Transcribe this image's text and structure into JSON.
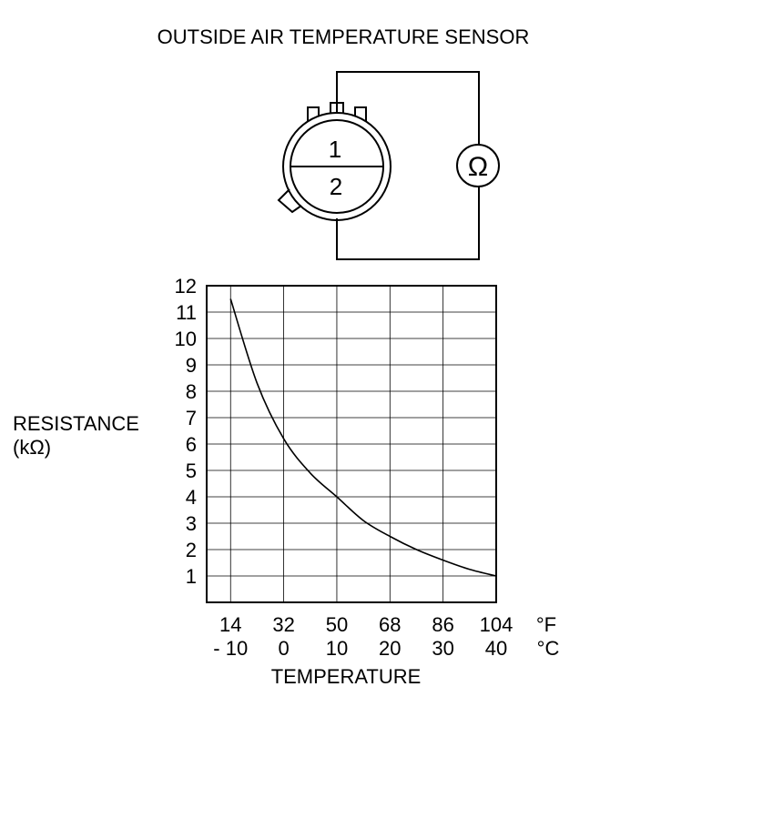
{
  "title": "OUTSIDE AIR TEMPERATURE SENSOR",
  "sensor": {
    "pin_top": "1",
    "pin_bottom": "2",
    "meter_symbol": "Ω"
  },
  "chart_data": {
    "type": "line",
    "title": "OUTSIDE AIR TEMPERATURE SENSOR",
    "ylabel_line1": "RESISTANCE",
    "ylabel_line2": "(kΩ)",
    "xlabel": "TEMPERATURE",
    "x_unit_f": "°F",
    "x_unit_c": "°C",
    "x_ticks_f": [
      "14",
      "32",
      "50",
      "68",
      "86",
      "104"
    ],
    "x_ticks_c": [
      "- 10",
      "0",
      "10",
      "20",
      "30",
      "40"
    ],
    "x_tick_values_c": [
      -10,
      0,
      10,
      20,
      30,
      40
    ],
    "y_ticks": [
      "1",
      "2",
      "3",
      "4",
      "5",
      "6",
      "7",
      "8",
      "9",
      "10",
      "11",
      "12"
    ],
    "xlim_c": [
      -14.5,
      40
    ],
    "ylim": [
      0,
      12
    ],
    "grid": true,
    "series": [
      {
        "x_c": [
          -10,
          -5,
          0,
          5,
          10,
          15,
          20,
          25,
          30,
          35,
          40
        ],
        "values": [
          11.5,
          8.3,
          6.2,
          4.9,
          4.0,
          3.1,
          2.5,
          2.0,
          1.6,
          1.25,
          1.0
        ]
      }
    ]
  }
}
